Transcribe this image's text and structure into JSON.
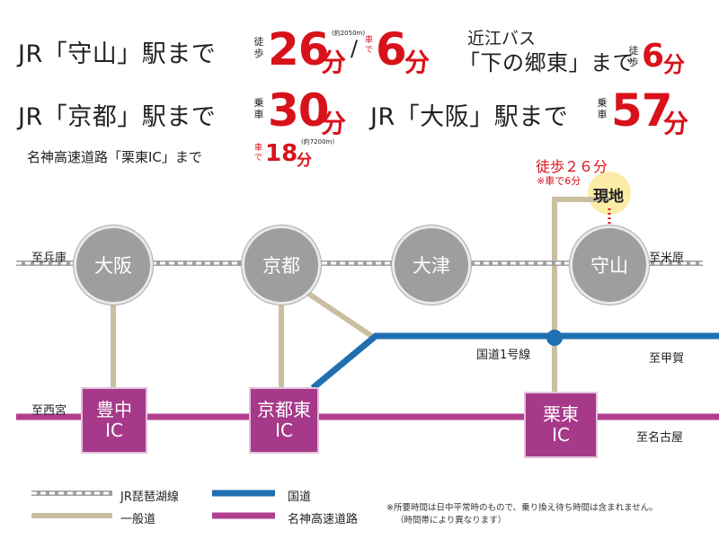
{
  "row1": {
    "jr_moriyama": "JR「守山」駅まで",
    "walk_v": [
      "徒",
      "歩"
    ],
    "walk_minutes": "26",
    "walk_unit": "分",
    "distance_note": "(約2050m)",
    "slash": "/",
    "car_v": [
      "車",
      "で"
    ],
    "car_minutes": "6",
    "car_unit": "分",
    "bus_company": "近江バス",
    "bus_stop": "「下の郷東」まで",
    "bus_walk_v": [
      "徒",
      "歩"
    ],
    "bus_walk_minutes": "6",
    "bus_walk_unit": "分"
  },
  "row2": {
    "jr_kyoto": "JR「京都」駅まで",
    "kyoto_ride_v": [
      "乗",
      "車"
    ],
    "kyoto_minutes": "30",
    "kyoto_unit": "分",
    "jr_osaka": "JR「大阪」駅まで",
    "osaka_ride_v": [
      "乗",
      "車"
    ],
    "osaka_minutes": "57",
    "osaka_unit": "分"
  },
  "row3": {
    "meishin": "名神高速道路「栗東IC」まで",
    "car_v": [
      "車",
      "で"
    ],
    "minutes": "18",
    "unit": "分",
    "distance_note": "(約7200m)"
  },
  "map": {
    "stations": [
      "大阪",
      "京都",
      "大津",
      "守山"
    ],
    "ics": [
      [
        "豊中",
        "IC"
      ],
      [
        "京都東",
        "IC"
      ],
      [
        "栗東",
        "IC"
      ]
    ],
    "site_label": "現地",
    "site_walk": "徒歩２６分",
    "site_car": "※車で6分",
    "dir_hyogo": "至兵庫",
    "dir_maibara": "至米原",
    "dir_nishinomiya": "至西宮",
    "dir_koka": "至甲賀",
    "dir_nagoya": "至名古屋",
    "route1": "国道1号線"
  },
  "legend": {
    "jr_line": "JR琵琶湖線",
    "general_road": "一般道",
    "national_road": "国道",
    "meishin": "名神高速道路",
    "note_line1": "※所要時間は日中平常時のもので、乗り換え待ち時間は含まれません。",
    "note_line2": "（時間帯により異なります）"
  },
  "colors": {
    "red": "#d8121b",
    "station": "#9d9e9f",
    "jr_line": "#b4b4b4",
    "general_road": "#cbbfa2",
    "national_road": "#1f6fb1",
    "meishin": "#b23e8e",
    "site_glow": "#fbe58a"
  }
}
